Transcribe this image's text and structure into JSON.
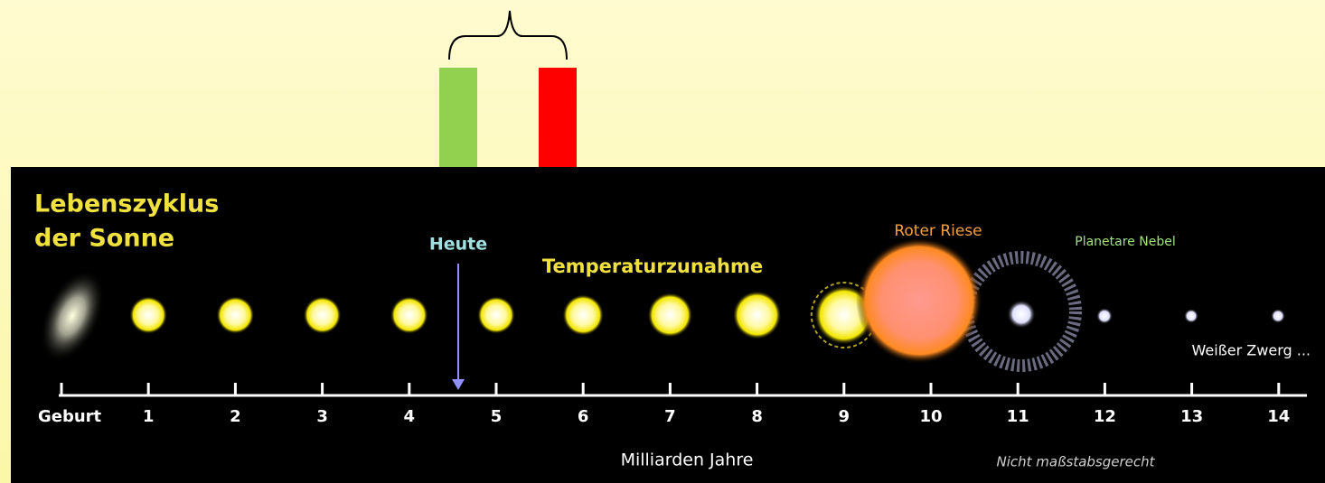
{
  "title": [
    "Lebenszyklus",
    "der Sonne"
  ],
  "today": "Heute",
  "temperature": "Temperaturzunahme",
  "red_giant": "Roter Riese",
  "nebula": "Planetare Nebel",
  "white_dwarf": "Weißer Zwerg ...",
  "axis_labels": [
    "Geburt",
    "1",
    "2",
    "3",
    "4",
    "5",
    "6",
    "7",
    "8",
    "9",
    "10",
    "11",
    "12",
    "13",
    "14"
  ],
  "axis_title": "Milliarden Jahre",
  "note": "Nicht maßstabsgerecht"
}
